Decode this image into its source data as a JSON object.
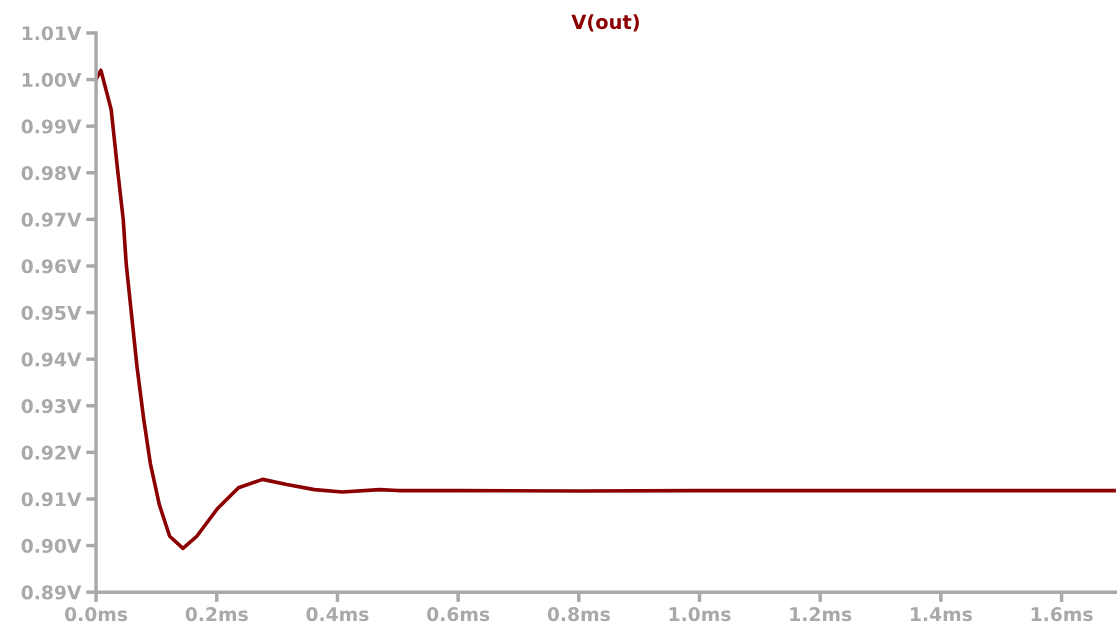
{
  "chart_data": {
    "type": "line",
    "title": "V(out)",
    "grid": false,
    "legend": false,
    "marker": "none",
    "line_style": "solid",
    "x": [
      0,
      0.008,
      0.025,
      0.036,
      0.045,
      0.05,
      0.059,
      0.068,
      0.079,
      0.09,
      0.105,
      0.122,
      0.144,
      0.167,
      0.201,
      0.236,
      0.276,
      0.316,
      0.362,
      0.408,
      0.47,
      0.5,
      0.6,
      0.8,
      1.0,
      1.2,
      1.4,
      1.69
    ],
    "series": [
      {
        "color": "#8b0000",
        "values": [
          1.0,
          1.002,
          0.9936,
          0.9803,
          0.97,
          0.9604,
          0.9493,
          0.9382,
          0.9271,
          0.9176,
          0.9087,
          0.902,
          0.8994,
          0.902,
          0.9079,
          0.9124,
          0.9142,
          0.9131,
          0.912,
          0.9115,
          0.912,
          0.9118,
          0.9118,
          0.9117,
          0.9118,
          0.9118,
          0.9118,
          0.9118
        ]
      }
    ],
    "xlim": [
      0,
      1.69
    ],
    "ylim": [
      0.89,
      1.01
    ],
    "xticks": [
      {
        "value": 0,
        "label": "0.0ms"
      },
      {
        "value": 0.2,
        "label": "0.2ms"
      },
      {
        "value": 0.4,
        "label": "0.4ms"
      },
      {
        "value": 0.6,
        "label": "0.6ms"
      },
      {
        "value": 0.8,
        "label": "0.8ms"
      },
      {
        "value": 1.0,
        "label": "1.0ms"
      },
      {
        "value": 1.2,
        "label": "1.2ms"
      },
      {
        "value": 1.4,
        "label": "1.4ms"
      },
      {
        "value": 1.6,
        "label": "1.6ms"
      }
    ],
    "yticks": [
      {
        "value": 0.89,
        "label": "0.89V"
      },
      {
        "value": 0.9,
        "label": "0.90V"
      },
      {
        "value": 0.91,
        "label": "0.91V"
      },
      {
        "value": 0.92,
        "label": "0.92V"
      },
      {
        "value": 0.93,
        "label": "0.93V"
      },
      {
        "value": 0.94,
        "label": "0.94V"
      },
      {
        "value": 0.95,
        "label": "0.95V"
      },
      {
        "value": 0.96,
        "label": "0.96V"
      },
      {
        "value": 0.97,
        "label": "0.97V"
      },
      {
        "value": 0.98,
        "label": "0.98V"
      },
      {
        "value": 0.99,
        "label": "0.99V"
      },
      {
        "value": 1.0,
        "label": "1.00V"
      },
      {
        "value": 1.01,
        "label": "1.01V"
      }
    ]
  }
}
